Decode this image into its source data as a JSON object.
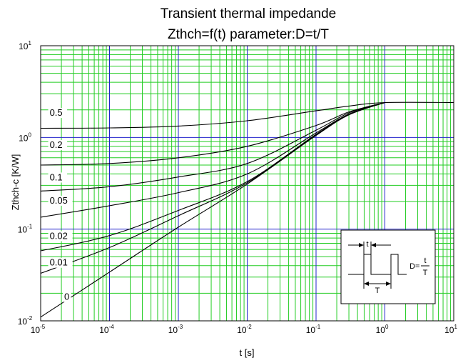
{
  "chart_data": {
    "type": "line",
    "title": "Transient thermal impedande",
    "subtitle": "Zthch=f(t) parameter:D=t/T",
    "xlabel": "t [s]",
    "ylabel": "Zthch-c [K/W]",
    "x_scale": "log",
    "y_scale": "log",
    "xlim": [
      1e-05,
      10
    ],
    "ylim": [
      0.01,
      10
    ],
    "grid": true,
    "x_ticks": [
      {
        "base": "10",
        "exp": "-5",
        "value": 1e-05
      },
      {
        "base": "10",
        "exp": "-4",
        "value": 0.0001
      },
      {
        "base": "10",
        "exp": "-3",
        "value": 0.001
      },
      {
        "base": "10",
        "exp": "-2",
        "value": 0.01
      },
      {
        "base": "10",
        "exp": "-1",
        "value": 0.1
      },
      {
        "base": "10",
        "exp": "0",
        "value": 1
      },
      {
        "base": "10",
        "exp": "1",
        "value": 10
      }
    ],
    "y_ticks": [
      {
        "base": "10",
        "exp": "-2",
        "value": 0.01
      },
      {
        "base": "10",
        "exp": "-1",
        "value": 0.1
      },
      {
        "base": "10",
        "exp": "0",
        "value": 1
      },
      {
        "base": "10",
        "exp": "1",
        "value": 10
      }
    ],
    "colors": {
      "major_grid": "#2222cc",
      "minor_grid": "#22cc22",
      "curve": "#000000",
      "frame": "#000000"
    },
    "series": [
      {
        "name": "0.5",
        "label_x": 1.35e-05,
        "label_y": 1.72,
        "x": [
          1e-05,
          0.0001,
          0.001,
          0.01,
          0.1,
          0.3,
          1,
          10
        ],
        "y": [
          1.26,
          1.27,
          1.33,
          1.52,
          1.95,
          2.2,
          2.4,
          2.4
        ]
      },
      {
        "name": "0.2",
        "label_x": 1.35e-05,
        "label_y": 0.77,
        "x": [
          1e-05,
          0.0001,
          0.001,
          0.01,
          0.1,
          0.3,
          1
        ],
        "y": [
          0.5,
          0.52,
          0.6,
          0.8,
          1.35,
          1.9,
          2.4
        ]
      },
      {
        "name": "0.1",
        "label_x": 1.35e-05,
        "label_y": 0.34,
        "x": [
          1e-05,
          0.0001,
          0.001,
          0.01,
          0.1,
          0.3,
          1
        ],
        "y": [
          0.26,
          0.29,
          0.37,
          0.52,
          1.2,
          1.85,
          2.4
        ]
      },
      {
        "name": "0.05",
        "label_x": 1.35e-05,
        "label_y": 0.19,
        "x": [
          1e-05,
          0.0001,
          0.001,
          0.01,
          0.1,
          0.3,
          1
        ],
        "y": [
          0.135,
          0.18,
          0.25,
          0.4,
          1.12,
          1.8,
          2.4
        ]
      },
      {
        "name": "0.02",
        "label_x": 1.35e-05,
        "label_y": 0.078,
        "x": [
          1e-05,
          0.0001,
          0.001,
          0.01,
          0.1,
          0.3,
          1
        ],
        "y": [
          0.058,
          0.085,
          0.16,
          0.33,
          1.08,
          1.78,
          2.4
        ]
      },
      {
        "name": "0.01",
        "label_x": 1.35e-05,
        "label_y": 0.04,
        "x": [
          1e-05,
          0.0001,
          0.001,
          0.01,
          0.1,
          0.3,
          1
        ],
        "y": [
          0.033,
          0.063,
          0.14,
          0.32,
          1.06,
          1.77,
          2.4
        ]
      },
      {
        "name": "0",
        "label_x": 2.2e-05,
        "label_y": 0.017,
        "x": [
          1e-05,
          0.0001,
          0.001,
          0.01,
          0.1,
          0.3,
          1
        ],
        "y": [
          0.011,
          0.034,
          0.105,
          0.31,
          1.05,
          1.76,
          2.4
        ]
      }
    ],
    "inset": {
      "label_t": "t",
      "label_T": "T",
      "label_D": "D=",
      "fraction_num": "t",
      "fraction_den": "T"
    }
  }
}
